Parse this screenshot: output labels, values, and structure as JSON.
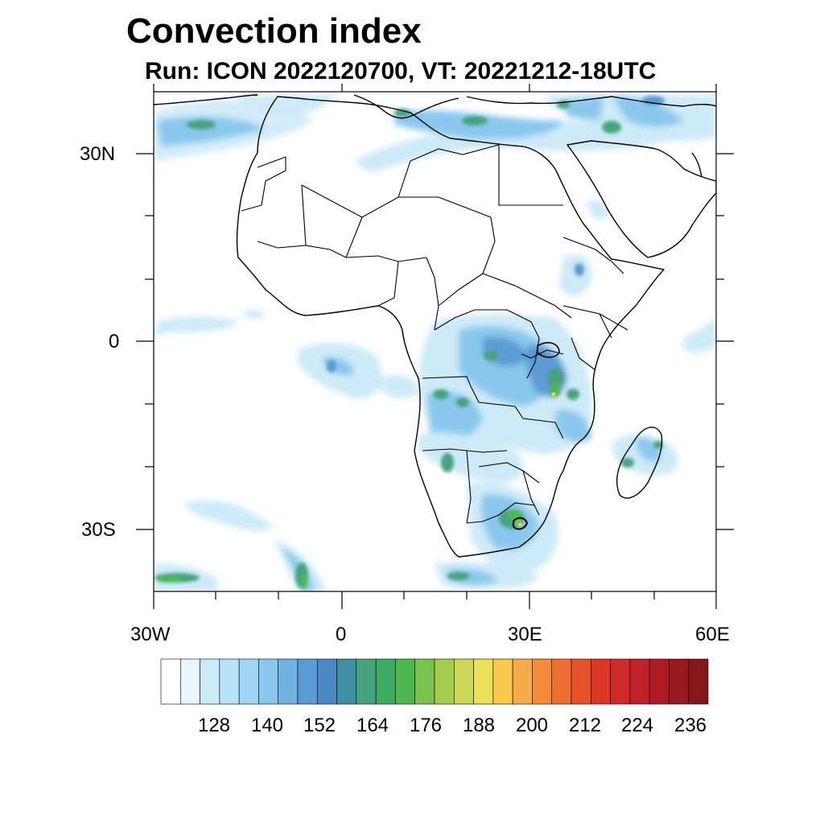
{
  "title": "Convection index",
  "subtitle": "Run: ICON 2022120700,  VT: 20221212-18UTC",
  "axes": {
    "lat_labels": [
      "30N",
      "0",
      "30S"
    ],
    "lon_labels": [
      "30W",
      "0",
      "30E",
      "60E"
    ],
    "lon_range_deg": [
      -30,
      60
    ],
    "lat_range_deg": [
      -40,
      40
    ]
  },
  "colorbar": {
    "labels": [
      "128",
      "140",
      "152",
      "164",
      "176",
      "188",
      "200",
      "212",
      "224",
      "236"
    ],
    "colors": [
      "#ffffff",
      "#e9f6fd",
      "#cdeaf8",
      "#b7e2f8",
      "#9fd6f4",
      "#89c8ec",
      "#72b2e2",
      "#5b9bd3",
      "#4c89c4",
      "#3f8fa3",
      "#46a37e",
      "#3eab62",
      "#4eb84f",
      "#7bc150",
      "#a6cc4f",
      "#cdd85a",
      "#eee15a",
      "#f7c94f",
      "#f5ab48",
      "#f38d3d",
      "#ee6e31",
      "#e55128",
      "#dc3627",
      "#cf2a2a",
      "#c0212a",
      "#ad1c25",
      "#981a1e",
      "#841717"
    ]
  },
  "fill_colors": {
    "light": "#cdeaf8",
    "mid": "#89c8ec",
    "blue": "#5b9bd3",
    "teal": "#46a37e",
    "green": "#4eb84f",
    "lime": "#a6cc4f",
    "yellow": "#eee15a",
    "orange": "#f5ab48",
    "red": "#dc3627"
  }
}
